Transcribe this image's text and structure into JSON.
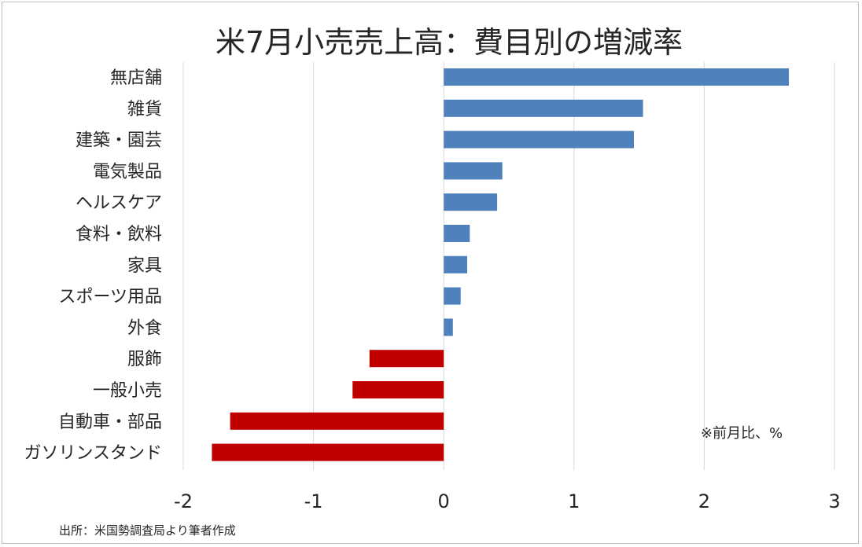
{
  "chart_data": {
    "type": "bar",
    "orientation": "horizontal",
    "title": "米7月小売売上高：費目別の増減率",
    "categories": [
      "無店舗",
      "雑貨",
      "建築・園芸",
      "電気製品",
      "ヘルスケア",
      "食料・飲料",
      "家具",
      "スポーツ用品",
      "外食",
      "服飾",
      "一般小売",
      "自動車・部品",
      "ガソリンスタンド"
    ],
    "values": [
      2.65,
      1.53,
      1.46,
      0.45,
      0.41,
      0.2,
      0.18,
      0.13,
      0.07,
      -0.57,
      -0.7,
      -1.64,
      -1.78
    ],
    "xlim": [
      -2,
      3
    ],
    "xticks": [
      "-2",
      "-1",
      "0",
      "1",
      "2",
      "3"
    ],
    "grid": true,
    "annotation": "※前月比、%",
    "source": "出所：米国勢調査局より筆者作成",
    "colors": {
      "positive": "#4f81bd",
      "negative": "#c00000",
      "grid": "#d9d9d9",
      "text": "#262626"
    }
  }
}
